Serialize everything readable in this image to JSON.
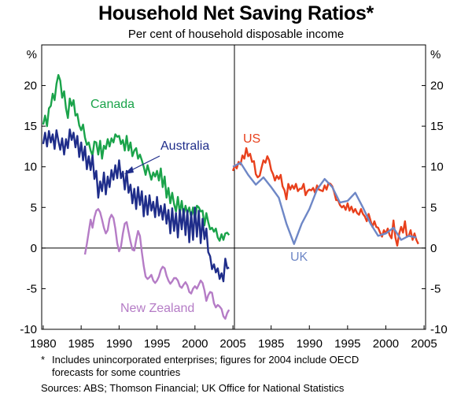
{
  "chart_data": {
    "type": "line",
    "title": "Household Net Saving Ratios*",
    "subtitle": "Per cent of household disposable income",
    "ylabel": "%",
    "ylim": [
      -10,
      25
    ],
    "yticks": [
      -10,
      -5,
      0,
      5,
      10,
      15,
      20
    ],
    "ytick_labels": [
      "-10",
      "-5",
      "0",
      "5",
      "10",
      "15",
      "20"
    ],
    "xticks": [
      1980,
      1985,
      1990,
      1995,
      2000,
      2005
    ],
    "panels": [
      {
        "name": "left",
        "xlim": [
          1979.8,
          2005.2
        ],
        "xtick_labels": [
          "1980",
          "1985",
          "1990",
          "1995",
          "2000",
          "2005"
        ],
        "series": [
          {
            "name": "Canada",
            "color": "#1aa34a",
            "label": "Canada",
            "x": [
              1980.0,
              1980.25,
              1980.5,
              1980.75,
              1981.0,
              1981.25,
              1981.5,
              1981.75,
              1982.0,
              1982.25,
              1982.5,
              1982.75,
              1983.0,
              1983.25,
              1983.5,
              1983.75,
              1984.0,
              1984.25,
              1984.5,
              1984.75,
              1985.0,
              1985.25,
              1985.5,
              1985.75,
              1986.0,
              1986.25,
              1986.5,
              1986.75,
              1987.0,
              1987.25,
              1987.5,
              1987.75,
              1988.0,
              1988.25,
              1988.5,
              1988.75,
              1989.0,
              1989.25,
              1989.5,
              1989.75,
              1990.0,
              1990.25,
              1990.5,
              1990.75,
              1991.0,
              1991.25,
              1991.5,
              1991.75,
              1992.0,
              1992.25,
              1992.5,
              1992.75,
              1993.0,
              1993.25,
              1993.5,
              1993.75,
              1994.0,
              1994.25,
              1994.5,
              1994.75,
              1995.0,
              1995.25,
              1995.5,
              1995.75,
              1996.0,
              1996.25,
              1996.5,
              1996.75,
              1997.0,
              1997.25,
              1997.5,
              1997.75,
              1998.0,
              1998.25,
              1998.5,
              1998.75,
              1999.0,
              1999.25,
              1999.5,
              1999.75,
              2000.0,
              2000.25,
              2000.5,
              2000.75,
              2001.0,
              2001.25,
              2001.5,
              2001.75,
              2002.0,
              2002.25,
              2002.5,
              2002.75,
              2003.0,
              2003.25,
              2003.5,
              2003.75,
              2004.0,
              2004.25,
              2004.5
            ],
            "y": [
              15.2,
              16.3,
              15.0,
              17.2,
              17.5,
              19.0,
              18.2,
              20.2,
              21.3,
              20.6,
              18.5,
              19.3,
              17.2,
              16.0,
              18.4,
              17.5,
              18.2,
              16.3,
              16.5,
              15.1,
              14.5,
              15.2,
              13.6,
              12.7,
              13.0,
              12.0,
              11.4,
              13.1,
              13.0,
              11.5,
              13.2,
              11.0,
              12.6,
              12.2,
              13.4,
              12.5,
              13.5,
              13.0,
              14.0,
              13.7,
              13.8,
              12.8,
              13.3,
              12.0,
              13.8,
              12.0,
              13.0,
              11.3,
              12.0,
              12.3,
              11.0,
              11.5,
              10.8,
              10.0,
              9.0,
              10.2,
              9.3,
              8.4,
              9.3,
              8.8,
              9.5,
              8.3,
              9.8,
              7.5,
              8.8,
              6.2,
              7.4,
              5.5,
              6.8,
              5.4,
              4.5,
              6.3,
              4.3,
              5.8,
              4.0,
              5.2,
              4.3,
              5.0,
              3.8,
              5.0,
              3.5,
              5.2,
              5.0,
              4.5,
              4.6,
              2.8,
              4.3,
              3.2,
              2.3,
              2.5,
              2.0,
              2.4,
              1.3,
              0.9,
              1.7,
              1.0,
              1.8,
              1.9,
              1.6
            ]
          },
          {
            "name": "Australia",
            "color": "#1f2d8a",
            "label": "Australia",
            "x": [
              1980.0,
              1980.25,
              1980.5,
              1980.75,
              1981.0,
              1981.25,
              1981.5,
              1981.75,
              1982.0,
              1982.25,
              1982.5,
              1982.75,
              1983.0,
              1983.25,
              1983.5,
              1983.75,
              1984.0,
              1984.25,
              1984.5,
              1984.75,
              1985.0,
              1985.25,
              1985.5,
              1985.75,
              1986.0,
              1986.25,
              1986.5,
              1986.75,
              1987.0,
              1987.25,
              1987.5,
              1987.75,
              1988.0,
              1988.25,
              1988.5,
              1988.75,
              1989.0,
              1989.25,
              1989.5,
              1989.75,
              1990.0,
              1990.25,
              1990.5,
              1990.75,
              1991.0,
              1991.25,
              1991.5,
              1991.75,
              1992.0,
              1992.25,
              1992.5,
              1992.75,
              1993.0,
              1993.25,
              1993.5,
              1993.75,
              1994.0,
              1994.25,
              1994.5,
              1994.75,
              1995.0,
              1995.25,
              1995.5,
              1995.75,
              1996.0,
              1996.25,
              1996.5,
              1996.75,
              1997.0,
              1997.25,
              1997.5,
              1997.75,
              1998.0,
              1998.25,
              1998.5,
              1998.75,
              1999.0,
              1999.25,
              1999.5,
              1999.75,
              2000.0,
              2000.25,
              2000.5,
              2000.75,
              2001.0,
              2001.25,
              2001.5,
              2001.75,
              2002.0,
              2002.25,
              2002.5,
              2002.75,
              2003.0,
              2003.25,
              2003.5,
              2003.75,
              2004.0,
              2004.25,
              2004.5
            ],
            "y": [
              12.8,
              14.2,
              12.5,
              14.4,
              13.0,
              14.0,
              12.2,
              14.5,
              13.2,
              12.1,
              13.5,
              11.5,
              13.4,
              12.3,
              14.6,
              13.3,
              14.2,
              12.4,
              13.8,
              11.2,
              13.0,
              10.8,
              12.5,
              9.7,
              11.3,
              9.6,
              11.4,
              8.5,
              9.5,
              6.2,
              8.2,
              7.0,
              9.3,
              6.6,
              8.8,
              7.5,
              9.6,
              8.4,
              10.2,
              8.6,
              10.8,
              8.6,
              9.4,
              7.2,
              9.5,
              6.8,
              7.8,
              5.5,
              7.3,
              4.8,
              7.5,
              5.3,
              7.0,
              3.9,
              6.4,
              4.1,
              6.5,
              4.6,
              5.7,
              3.8,
              6.3,
              4.0,
              5.2,
              3.5,
              5.4,
              3.0,
              4.7,
              1.8,
              4.9,
              2.1,
              4.3,
              1.3,
              4.7,
              2.3,
              4.8,
              1.6,
              4.6,
              0.7,
              4.4,
              1.0,
              5.0,
              1.4,
              4.6,
              0.6,
              3.6,
              1.1,
              2.4,
              -0.5,
              -1.0,
              -2.6,
              -2.0,
              -3.0,
              -2.5,
              -3.8,
              -3.1,
              -4.1,
              -1.3,
              -2.5,
              -2.4
            ]
          },
          {
            "name": "New Zealand",
            "color": "#b57cc6",
            "label": "New Zealand",
            "x": [
              1985.5,
              1985.75,
              1986.0,
              1986.25,
              1986.5,
              1986.75,
              1987.0,
              1987.25,
              1987.5,
              1987.75,
              1988.0,
              1988.25,
              1988.5,
              1988.75,
              1989.0,
              1989.25,
              1989.5,
              1989.75,
              1990.0,
              1990.25,
              1990.5,
              1990.75,
              1991.0,
              1991.25,
              1991.5,
              1991.75,
              1992.0,
              1992.25,
              1992.5,
              1992.75,
              1993.0,
              1993.25,
              1993.5,
              1993.75,
              1994.0,
              1994.25,
              1994.5,
              1994.75,
              1995.0,
              1995.25,
              1995.5,
              1995.75,
              1996.0,
              1996.25,
              1996.5,
              1996.75,
              1997.0,
              1997.25,
              1997.5,
              1997.75,
              1998.0,
              1998.25,
              1998.5,
              1998.75,
              1999.0,
              1999.25,
              1999.5,
              1999.75,
              2000.0,
              2000.25,
              2000.5,
              2000.75,
              2001.0,
              2001.25,
              2001.5,
              2001.75,
              2002.0,
              2002.25,
              2002.5,
              2002.75,
              2003.0,
              2003.25,
              2003.5,
              2003.75,
              2004.0,
              2004.25,
              2004.5
            ],
            "y": [
              -0.8,
              0.5,
              2.0,
              3.5,
              2.5,
              3.8,
              4.6,
              4.8,
              4.4,
              3.5,
              2.5,
              1.8,
              2.2,
              3.6,
              4.1,
              3.7,
              2.4,
              0.6,
              -0.4,
              0.2,
              1.8,
              3.0,
              3.2,
              2.0,
              0.8,
              -0.2,
              -0.3,
              1.0,
              2.1,
              1.5,
              -0.5,
              -2.2,
              -3.5,
              -3.8,
              -3.6,
              -3.3,
              -4.0,
              -4.3,
              -4.0,
              -3.5,
              -2.7,
              -2.3,
              -2.5,
              -3.4,
              -4.0,
              -4.4,
              -4.1,
              -3.7,
              -3.7,
              -4.0,
              -4.7,
              -4.9,
              -4.5,
              -4.2,
              -4.6,
              -5.4,
              -5.6,
              -5.0,
              -4.7,
              -5.0,
              -4.5,
              -4.0,
              -4.3,
              -5.2,
              -6.5,
              -5.8,
              -5.4,
              -5.5,
              -6.8,
              -7.3,
              -7.0,
              -7.2,
              -7.5,
              -8.4,
              -8.7,
              -8.0,
              -7.6
            ]
          }
        ]
      },
      {
        "name": "right",
        "xlim": [
          1980.2,
          2005.2
        ],
        "xtick_labels": [
          "",
          "1985",
          "1990",
          "1995",
          "2000",
          "2005"
        ],
        "series": [
          {
            "name": "US",
            "color": "#e8401c",
            "label": "US",
            "x": [
              1980.0,
              1980.25,
              1980.5,
              1980.75,
              1981.0,
              1981.25,
              1981.5,
              1981.75,
              1982.0,
              1982.25,
              1982.5,
              1982.75,
              1983.0,
              1983.25,
              1983.5,
              1983.75,
              1984.0,
              1984.25,
              1984.5,
              1984.75,
              1985.0,
              1985.25,
              1985.5,
              1985.75,
              1986.0,
              1986.25,
              1986.5,
              1986.75,
              1987.0,
              1987.25,
              1987.5,
              1987.75,
              1988.0,
              1988.25,
              1988.5,
              1988.75,
              1989.0,
              1989.25,
              1989.5,
              1989.75,
              1990.0,
              1990.25,
              1990.5,
              1990.75,
              1991.0,
              1991.25,
              1991.5,
              1991.75,
              1992.0,
              1992.25,
              1992.5,
              1992.75,
              1993.0,
              1993.25,
              1993.5,
              1993.75,
              1994.0,
              1994.25,
              1994.5,
              1994.75,
              1995.0,
              1995.25,
              1995.5,
              1995.75,
              1996.0,
              1996.25,
              1996.5,
              1996.75,
              1997.0,
              1997.25,
              1997.5,
              1997.75,
              1998.0,
              1998.25,
              1998.5,
              1998.75,
              1999.0,
              1999.25,
              1999.5,
              1999.75,
              2000.0,
              2000.25,
              2000.5,
              2000.75,
              2001.0,
              2001.25,
              2001.5,
              2001.75,
              2002.0,
              2002.25,
              2002.5,
              2002.75,
              2003.0,
              2003.25,
              2003.5,
              2003.75,
              2004.0,
              2004.25
            ],
            "y": [
              9.5,
              10.2,
              9.8,
              10.6,
              10.3,
              11.4,
              11.0,
              12.3,
              11.3,
              11.6,
              10.6,
              10.7,
              9.1,
              8.7,
              8.9,
              9.9,
              10.8,
              10.5,
              11.3,
              10.8,
              9.6,
              9.1,
              8.3,
              8.9,
              8.5,
              9.0,
              7.6,
              7.1,
              6.0,
              7.9,
              7.2,
              7.7,
              7.3,
              7.9,
              7.0,
              7.3,
              7.3,
              7.9,
              6.5,
              7.0,
              7.2,
              7.1,
              7.4,
              6.8,
              7.7,
              7.2,
              7.1,
              7.0,
              7.7,
              7.2,
              8.0,
              7.9,
              7.6,
              6.9,
              5.9,
              5.9,
              5.3,
              5.0,
              5.2,
              4.7,
              5.5,
              4.6,
              5.1,
              4.4,
              4.8,
              4.3,
              4.1,
              4.8,
              4.2,
              3.9,
              3.3,
              4.2,
              3.4,
              2.6,
              3.3,
              2.6,
              2.5,
              1.9,
              1.4,
              2.2,
              1.8,
              2.4,
              1.6,
              1.2,
              3.4,
              1.3,
              0.3,
              1.8,
              2.6,
              1.9,
              3.3,
              1.4,
              1.5,
              2.2,
              1.0,
              1.8,
              1.0,
              0.5
            ]
          },
          {
            "name": "UK",
            "color": "#6e87c6",
            "label": "UK",
            "x": [
              1980,
              1981,
              1982,
              1983,
              1984,
              1985,
              1986,
              1987,
              1988,
              1989,
              1990,
              1991,
              1992,
              1993,
              1994,
              1995,
              1996,
              1997,
              1998,
              1999,
              2000,
              2001,
              2002,
              2003,
              2004
            ],
            "y": [
              10.0,
              10.5,
              9.0,
              7.8,
              8.7,
              7.5,
              6.2,
              3.0,
              0.5,
              3.0,
              4.8,
              7.2,
              8.5,
              7.5,
              5.6,
              5.8,
              6.8,
              5.0,
              3.0,
              1.5,
              1.8,
              2.5,
              1.0,
              1.5,
              1.3
            ]
          }
        ]
      }
    ],
    "labels": {
      "canada": "Canada",
      "australia": "Australia",
      "new_zealand": "New Zealand",
      "us": "US",
      "uk": "UK"
    }
  },
  "footnotes": {
    "asterisk": "*",
    "note_line1": "Includes unincorporated enterprises; figures for 2004 include OECD",
    "note_line2": "forecasts for some countries",
    "sources": "Sources: ABS; Thomson Financial; UK Office for National Statistics"
  }
}
